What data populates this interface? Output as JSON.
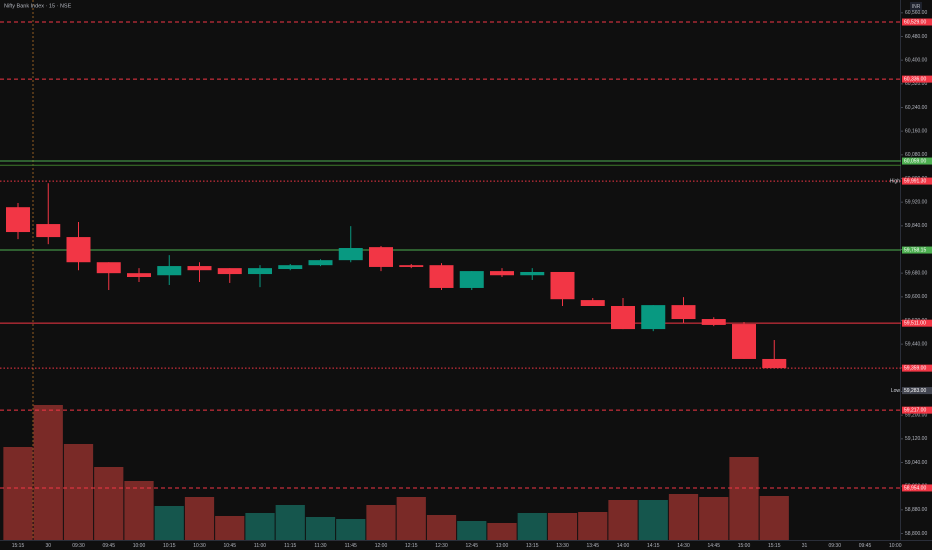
{
  "chart_data": {
    "type": "candlestick",
    "title": "Nifty Bank Index · 15 · NSE",
    "currency": "INR",
    "categories": [
      "15:15",
      "30",
      "09:30",
      "09:45",
      "10:00",
      "10:15",
      "10:30",
      "10:45",
      "11:00",
      "11:15",
      "11:30",
      "11:45",
      "12:00",
      "12:15",
      "12:30",
      "12:45",
      "13:00",
      "13:15",
      "13:30",
      "13:45",
      "14:00",
      "14:15",
      "14:30",
      "14:45",
      "15:00",
      "15:15",
      "31",
      "09:30",
      "09:45",
      "10:00"
    ],
    "open": [
      59903,
      59846,
      59802,
      59717,
      59680,
      59673,
      59704,
      59697,
      59677,
      59694,
      59707,
      59724,
      59768,
      59707,
      59707,
      59630,
      59687,
      59673,
      59684,
      59589,
      59569,
      59491,
      59572,
      59525,
      59508,
      59390,
      null,
      null,
      null,
      null
    ],
    "high": [
      59917,
      59984,
      59853,
      59717,
      59697,
      59741,
      59717,
      59697,
      59707,
      59711,
      59727,
      59839,
      59772,
      59711,
      59714,
      59687,
      59697,
      59697,
      59684,
      59596,
      59596,
      59572,
      59599,
      59531,
      59515,
      59454,
      null,
      null,
      null,
      null
    ],
    "low": [
      59795,
      59778,
      59690,
      59623,
      59650,
      59640,
      59650,
      59647,
      59633,
      59690,
      59704,
      59717,
      59687,
      59697,
      59623,
      59623,
      59667,
      59657,
      59569,
      59569,
      59491,
      59484,
      59511,
      59501,
      59390,
      59359,
      null,
      null,
      null,
      null
    ],
    "close": [
      59819,
      59802,
      59717,
      59680,
      59667,
      59704,
      59690,
      59677,
      59697,
      59707,
      59724,
      59765,
      59701,
      59701,
      59630,
      59687,
      59673,
      59684,
      59592,
      59569,
      59491,
      59572,
      59525,
      59505,
      59390,
      59359,
      null,
      null,
      null,
      null
    ],
    "volume": [
      93,
      135,
      96,
      73,
      59,
      34,
      43,
      24,
      27,
      35,
      23,
      21,
      35,
      43,
      25,
      19,
      17,
      27,
      27,
      28,
      40,
      40,
      46,
      43,
      83,
      44,
      null,
      null,
      null,
      null
    ],
    "up_color": "#089981",
    "down_color": "#f23645",
    "volume_up_color": "#15564d",
    "volume_down_color": "#7a2a27",
    "ylim": [
      58800,
      60600
    ],
    "yticks": [
      {
        "value": 58800,
        "label": "58,800.00"
      },
      {
        "value": 58880,
        "label": "58,880.00"
      },
      {
        "value": 58960,
        "label": "58,960.00"
      },
      {
        "value": 59040,
        "label": "59,040.00"
      },
      {
        "value": 59120,
        "label": "59,120.00"
      },
      {
        "value": 59200,
        "label": "59,200.00"
      },
      {
        "value": 59280,
        "label": "59,280.00"
      },
      {
        "value": 59360,
        "label": "59,360.00"
      },
      {
        "value": 59440,
        "label": "59,440.00"
      },
      {
        "value": 59520,
        "label": "59,520.00"
      },
      {
        "value": 59600,
        "label": "59,600.00"
      },
      {
        "value": 59680,
        "label": "59,680.00"
      },
      {
        "value": 59760,
        "label": "59,760.00"
      },
      {
        "value": 59840,
        "label": "59,840.00"
      },
      {
        "value": 59920,
        "label": "59,920.00"
      },
      {
        "value": 60000,
        "label": "60,000.00"
      },
      {
        "value": 60080,
        "label": "60,080.00"
      },
      {
        "value": 60160,
        "label": "60,160.00"
      },
      {
        "value": 60240,
        "label": "60,240.00"
      },
      {
        "value": 60320,
        "label": "60,320.00"
      },
      {
        "value": 60400,
        "label": "60,400.00"
      },
      {
        "value": 60480,
        "label": "60,480.00"
      },
      {
        "value": 60560,
        "label": "60,560.00"
      }
    ],
    "levels": [
      {
        "value": 60529,
        "label": "60,529.00",
        "color": "#f23645",
        "style": "dashed"
      },
      {
        "value": 60336,
        "label": "60,336.00",
        "color": "#f23645",
        "style": "dashed"
      },
      {
        "value": 60059,
        "label": "60,059.00",
        "color": "#4caf50",
        "style": "solid"
      },
      {
        "value": 60045,
        "color": "#3d7a2a",
        "style": "solid"
      },
      {
        "value": 59991.3,
        "label": "59,991.30",
        "color": "#f23645",
        "style": "dotted",
        "tag": "High"
      },
      {
        "value": 59758.15,
        "label": "59,758.15",
        "color": "#4caf50",
        "style": "solid"
      },
      {
        "value": 59511,
        "label": "59,511.00",
        "color": "#f23645",
        "style": "solid"
      },
      {
        "value": 59359,
        "label": "59,359.00",
        "color": "#f23645",
        "style": "dotted"
      },
      {
        "value": 59283,
        "label": "59,283.00",
        "color": "#434651",
        "style": "none",
        "tag": "Low"
      },
      {
        "value": 59217,
        "label": "59,217.00",
        "color": "#f23645",
        "style": "dashed"
      },
      {
        "value": 58954,
        "label": "58,954.00",
        "color": "#f23645",
        "style": "dashed"
      }
    ]
  }
}
